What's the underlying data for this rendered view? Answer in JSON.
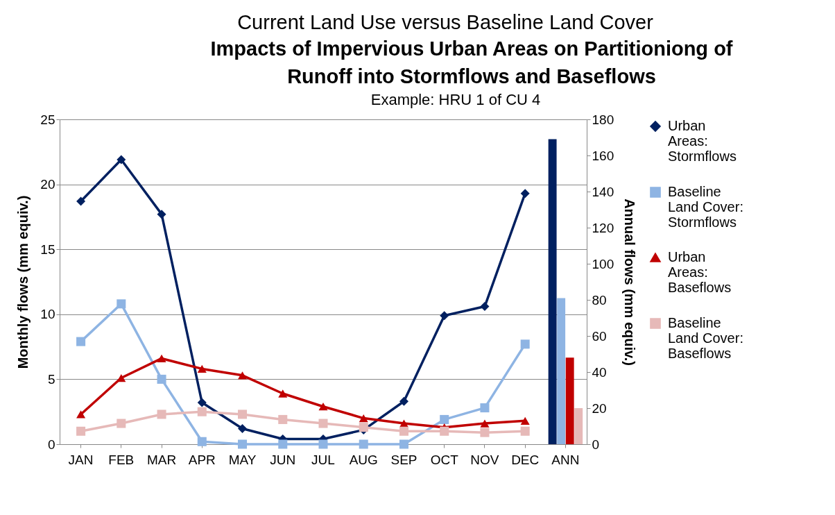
{
  "chart_data": {
    "type": "line",
    "title": "Current Land Use versus Baseline Land Cover",
    "subtitle": "Impacts of Impervious Urban Areas on Partitioniong of Runoff into Stormflows and Baseflows",
    "annotations": [
      "Example: HRU 1 of CU 4"
    ],
    "ylabel": "Monthly flows (mm equiv.)",
    "y2label": "Annual flows (mm equiv.)",
    "categories": [
      "JAN",
      "FEB",
      "MAR",
      "APR",
      "MAY",
      "JUN",
      "JUL",
      "AUG",
      "SEP",
      "OCT",
      "NOV",
      "DEC",
      "ANN"
    ],
    "ylim": [
      0,
      25
    ],
    "yticks": [
      0,
      5,
      10,
      15,
      20,
      25
    ],
    "y2lim": [
      0,
      180
    ],
    "y2ticks": [
      0,
      20,
      40,
      60,
      80,
      100,
      120,
      140,
      160,
      180
    ],
    "grid": "y",
    "legend": "right",
    "series": [
      {
        "name": "Urban Areas: Stormflows",
        "color": "#002060",
        "marker": "diamond",
        "values": [
          18.7,
          21.9,
          17.7,
          3.2,
          1.2,
          0.4,
          0.4,
          1.1,
          3.3,
          9.9,
          10.6,
          19.3,
          null
        ]
      },
      {
        "name": "Baseline Land Cover: Stormflows",
        "color": "#8eb4e3",
        "marker": "square",
        "values": [
          7.9,
          10.8,
          5.0,
          0.2,
          0,
          0,
          0,
          0,
          0,
          1.9,
          2.8,
          7.7,
          null
        ]
      },
      {
        "name": "Urban Areas: Baseflows",
        "color": "#c00000",
        "marker": "triangle",
        "values": [
          2.3,
          5.1,
          6.6,
          5.8,
          5.3,
          3.9,
          2.9,
          2.0,
          1.6,
          1.3,
          1.6,
          1.8,
          null
        ]
      },
      {
        "name": "Baseline Land Cover: Baseflows",
        "color": "#e6b9b8",
        "marker": "square",
        "values": [
          1.0,
          1.6,
          2.3,
          2.5,
          2.3,
          1.9,
          1.6,
          1.3,
          1.0,
          1.0,
          0.9,
          1.0,
          null
        ]
      },
      {
        "type": "bar",
        "axis": "y2",
        "color": "#002060",
        "values": [
          null,
          null,
          null,
          null,
          null,
          null,
          null,
          null,
          null,
          null,
          null,
          null,
          169
        ]
      },
      {
        "type": "bar",
        "axis": "y2",
        "color": "#8eb4e3",
        "values": [
          null,
          null,
          null,
          null,
          null,
          null,
          null,
          null,
          null,
          null,
          null,
          null,
          81
        ]
      },
      {
        "type": "bar",
        "axis": "y2",
        "color": "#c00000",
        "values": [
          null,
          null,
          null,
          null,
          null,
          null,
          null,
          null,
          null,
          null,
          null,
          null,
          48
        ]
      },
      {
        "type": "bar",
        "axis": "y2",
        "color": "#e6b9b8",
        "values": [
          null,
          null,
          null,
          null,
          null,
          null,
          null,
          null,
          null,
          null,
          null,
          null,
          20
        ]
      }
    ]
  }
}
